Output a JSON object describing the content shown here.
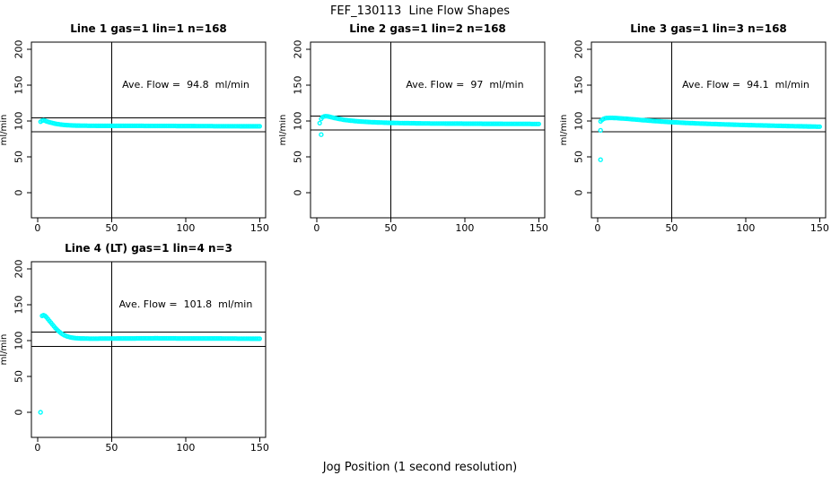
{
  "page": {
    "main_title": "FEF_130113  Line Flow Shapes",
    "x_axis_label": "Jog Position (1 second resolution)"
  },
  "chart_data": {
    "type": "scatter",
    "point_color": "#00FFFF",
    "line_color": "#000000",
    "background": "#FFFFFF",
    "layout_hint": "4 panels: 3 in top row, 1 bottom-left; grid off; no legend",
    "axes": {
      "xticks": [
        0,
        50,
        100,
        150
      ],
      "yticks": [
        0,
        50,
        100,
        150,
        200
      ],
      "xlim": [
        -4.2,
        154
      ],
      "ylim": [
        -35,
        210
      ],
      "ylabel": "ml/min"
    },
    "panels": [
      {
        "title": "Line 1 gas=1 lin=1 n=168",
        "annotation": "Ave. Flow =  94.8  ml/min",
        "ave_flow": 94.8,
        "vline_x": 50,
        "hlines": [
          104.3,
          85.3
        ],
        "points": [
          [
            2,
            99
          ],
          [
            3,
            100.5
          ],
          [
            4,
            101
          ],
          [
            5,
            100.5
          ],
          [
            6,
            99.5
          ],
          [
            8,
            98.2
          ],
          [
            10,
            97.2
          ],
          [
            12,
            96.3
          ],
          [
            15,
            95.2
          ],
          [
            18,
            94.5
          ],
          [
            20,
            94.2
          ],
          [
            25,
            93.7
          ],
          [
            30,
            93.5
          ],
          [
            40,
            93.3
          ],
          [
            50,
            93.3
          ],
          [
            60,
            93.2
          ],
          [
            70,
            93.2
          ],
          [
            80,
            93.1
          ],
          [
            90,
            93.1
          ],
          [
            100,
            93
          ],
          [
            110,
            92.9
          ],
          [
            120,
            92.8
          ],
          [
            135,
            92.7
          ],
          [
            150,
            92.6
          ]
        ],
        "outliers": []
      },
      {
        "title": "Line 2 gas=1 lin=2 n=168",
        "annotation": "Ave. Flow =  97  ml/min",
        "ave_flow": 97,
        "vline_x": 50,
        "hlines": [
          106.7,
          87.3
        ],
        "points": [
          [
            2,
            97
          ],
          [
            3,
            103
          ],
          [
            4,
            105.5
          ],
          [
            5,
            106.5
          ],
          [
            6,
            106.8
          ],
          [
            7,
            106.6
          ],
          [
            8,
            106.2
          ],
          [
            10,
            105.3
          ],
          [
            12,
            104.3
          ],
          [
            15,
            103
          ],
          [
            18,
            101.8
          ],
          [
            20,
            101.2
          ],
          [
            25,
            100.1
          ],
          [
            30,
            99.2
          ],
          [
            35,
            98.6
          ],
          [
            40,
            98.1
          ],
          [
            50,
            97.4
          ],
          [
            60,
            97
          ],
          [
            70,
            96.7
          ],
          [
            80,
            96.5
          ],
          [
            90,
            96.4
          ],
          [
            100,
            96.3
          ],
          [
            110,
            96.2
          ],
          [
            120,
            96.1
          ],
          [
            135,
            96
          ],
          [
            150,
            95.9
          ]
        ],
        "outliers": [
          [
            3,
            81
          ]
        ]
      },
      {
        "title": "Line 3 gas=1 lin=3 n=168",
        "annotation": "Ave. Flow =  94.1  ml/min",
        "ave_flow": 94.1,
        "vline_x": 50,
        "hlines": [
          103.5,
          84.7
        ],
        "points": [
          [
            2,
            99.5
          ],
          [
            3,
            101.5
          ],
          [
            4,
            103
          ],
          [
            5,
            103.8
          ],
          [
            6,
            104.2
          ],
          [
            8,
            104.4
          ],
          [
            10,
            104.4
          ],
          [
            12,
            104.2
          ],
          [
            15,
            103.8
          ],
          [
            18,
            103.4
          ],
          [
            20,
            103.1
          ],
          [
            25,
            102.2
          ],
          [
            30,
            101.3
          ],
          [
            35,
            100.5
          ],
          [
            40,
            99.7
          ],
          [
            50,
            98.4
          ],
          [
            60,
            97.3
          ],
          [
            70,
            96.4
          ],
          [
            80,
            95.7
          ],
          [
            90,
            95
          ],
          [
            100,
            94.4
          ],
          [
            110,
            93.9
          ],
          [
            120,
            93.4
          ],
          [
            135,
            92.7
          ],
          [
            150,
            92.1
          ]
        ],
        "outliers": [
          [
            2,
            87
          ],
          [
            2,
            46
          ]
        ]
      },
      {
        "title": "Line 4 (LT) gas=1 lin=4 n=3",
        "annotation": "Ave. Flow =  101.8  ml/min",
        "ave_flow": 101.8,
        "vline_x": 50,
        "hlines": [
          112,
          91.6
        ],
        "points": [
          [
            3,
            134.5
          ],
          [
            4,
            135.5
          ],
          [
            5,
            134.5
          ],
          [
            6,
            132.5
          ],
          [
            7,
            130
          ],
          [
            8,
            127.5
          ],
          [
            9,
            125
          ],
          [
            10,
            122.5
          ],
          [
            12,
            117.5
          ],
          [
            14,
            113.5
          ],
          [
            16,
            110
          ],
          [
            18,
            107.5
          ],
          [
            20,
            105.8
          ],
          [
            22,
            104.6
          ],
          [
            25,
            103.6
          ],
          [
            28,
            103.1
          ],
          [
            30,
            103
          ],
          [
            35,
            102.8
          ],
          [
            40,
            102.8
          ],
          [
            50,
            102.9
          ],
          [
            60,
            103
          ],
          [
            70,
            103.1
          ],
          [
            80,
            103.2
          ],
          [
            90,
            103.1
          ],
          [
            100,
            103
          ],
          [
            110,
            103
          ],
          [
            120,
            103
          ],
          [
            135,
            102.8
          ],
          [
            150,
            102.6
          ]
        ],
        "outliers": [
          [
            2,
            0
          ]
        ]
      }
    ]
  }
}
